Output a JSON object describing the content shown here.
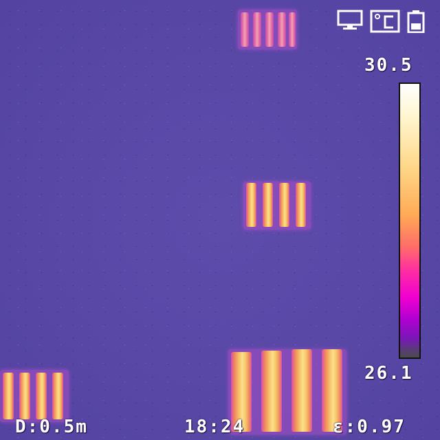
{
  "hud": {
    "temp_max": "30.5",
    "temp_min": "26.1",
    "distance": "D:0.5m",
    "time": "18:24",
    "emissivity": "ε:0.97"
  },
  "icons": {
    "display": "monitor-icon",
    "unit": "celsius-unit-icon",
    "battery": "battery-icon"
  },
  "colors": {
    "background": "#5a4aa6",
    "hot": "#fbe08a",
    "warm": "#f08a5c",
    "cool": "#d74fb0",
    "text": "#ffffff"
  }
}
